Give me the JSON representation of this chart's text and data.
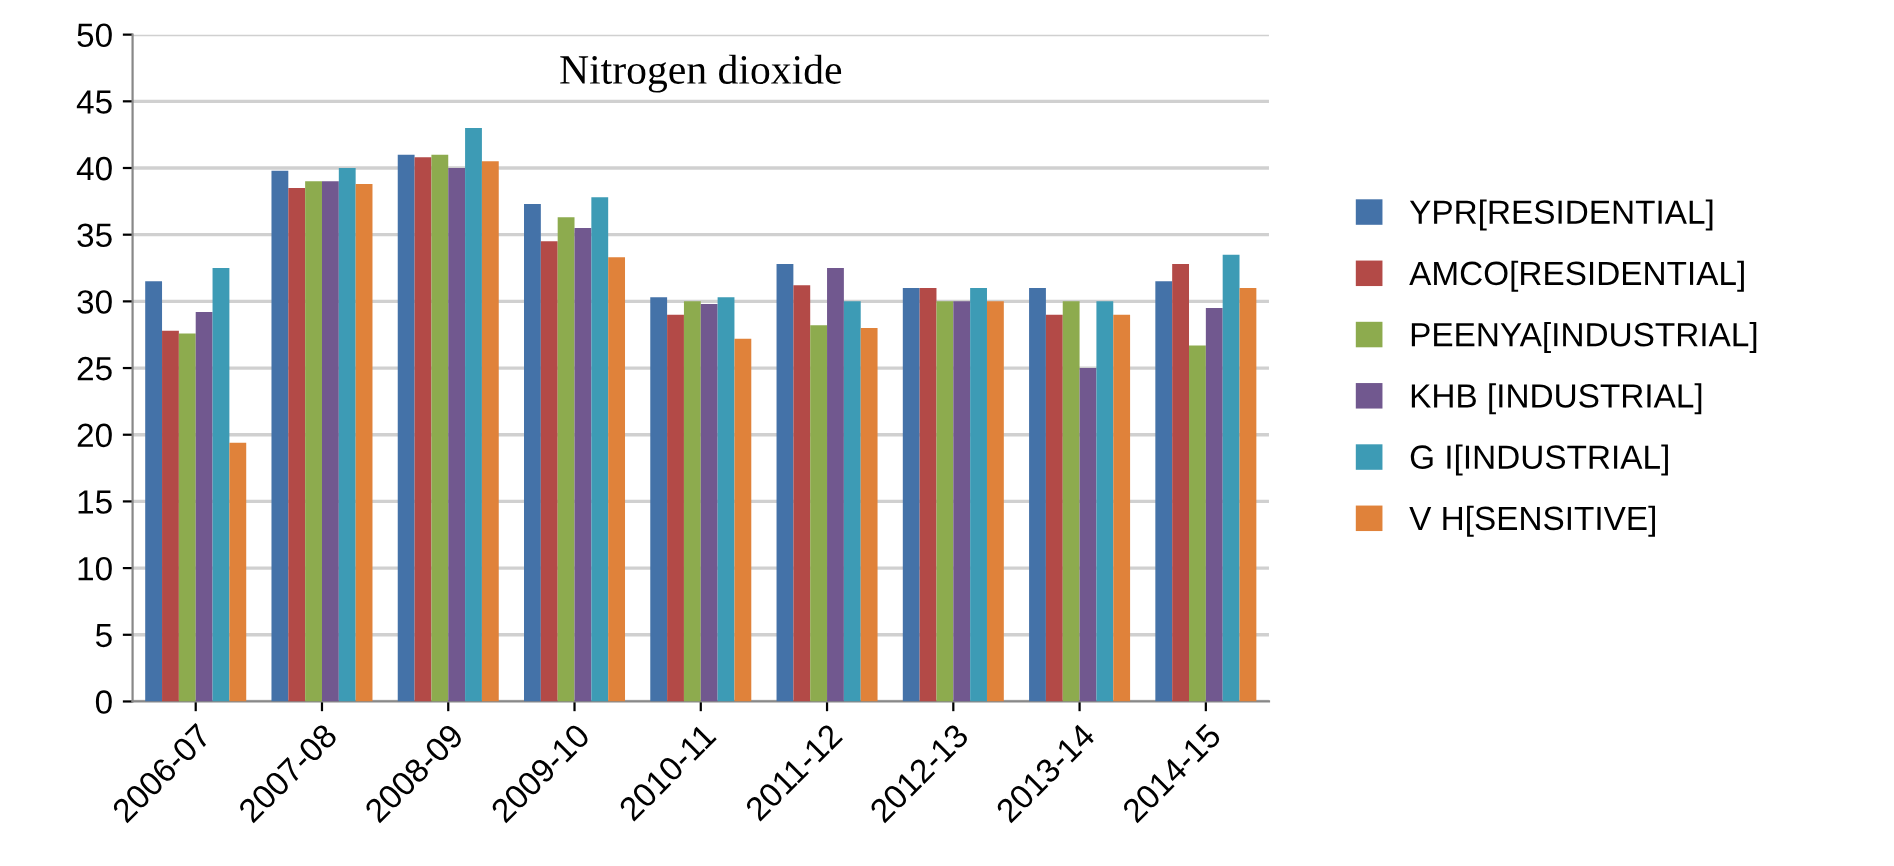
{
  "chart_data": {
    "type": "bar",
    "title": "Nitrogen dioxide",
    "categories": [
      "2006-07",
      "2007-08",
      "2008-09",
      "2009-10",
      "2010-11",
      "2011-12",
      "2012-13",
      "2013-14",
      "2014-15"
    ],
    "series": [
      {
        "name": "YPR[RESIDENTIAL]",
        "color": "#4472a8",
        "values": [
          31.5,
          39.8,
          41,
          37.3,
          30.3,
          32.8,
          31,
          31,
          31.5
        ]
      },
      {
        "name": "AMCO[RESIDENTIAL]",
        "color": "#b34a47",
        "values": [
          27.8,
          38.5,
          40.8,
          34.5,
          29,
          31.2,
          31,
          29,
          32.8
        ]
      },
      {
        "name": "PEENYA[INDUSTRIAL]",
        "color": "#8dab4e",
        "values": [
          27.6,
          39,
          41,
          36.3,
          30,
          28.2,
          30,
          30,
          26.7
        ]
      },
      {
        "name": "KHB [INDUSTRIAL]",
        "color": "#71588f",
        "values": [
          29.2,
          39,
          40,
          35.5,
          29.8,
          32.5,
          30,
          25,
          29.5
        ]
      },
      {
        "name": "G I[INDUSTRIAL]",
        "color": "#3d9bb5",
        "values": [
          32.5,
          40,
          43,
          37.8,
          30.3,
          30,
          31,
          30,
          33.5
        ]
      },
      {
        "name": "V H[SENSITIVE]",
        "color": "#e0823a",
        "values": [
          19.4,
          38.8,
          40.5,
          33.3,
          27.2,
          28,
          30,
          29,
          31
        ]
      }
    ],
    "ylim": [
      0,
      50
    ],
    "yticks": [
      0,
      5,
      10,
      15,
      20,
      25,
      30,
      35,
      40,
      45,
      50
    ],
    "grid": "y",
    "legend": "right"
  }
}
